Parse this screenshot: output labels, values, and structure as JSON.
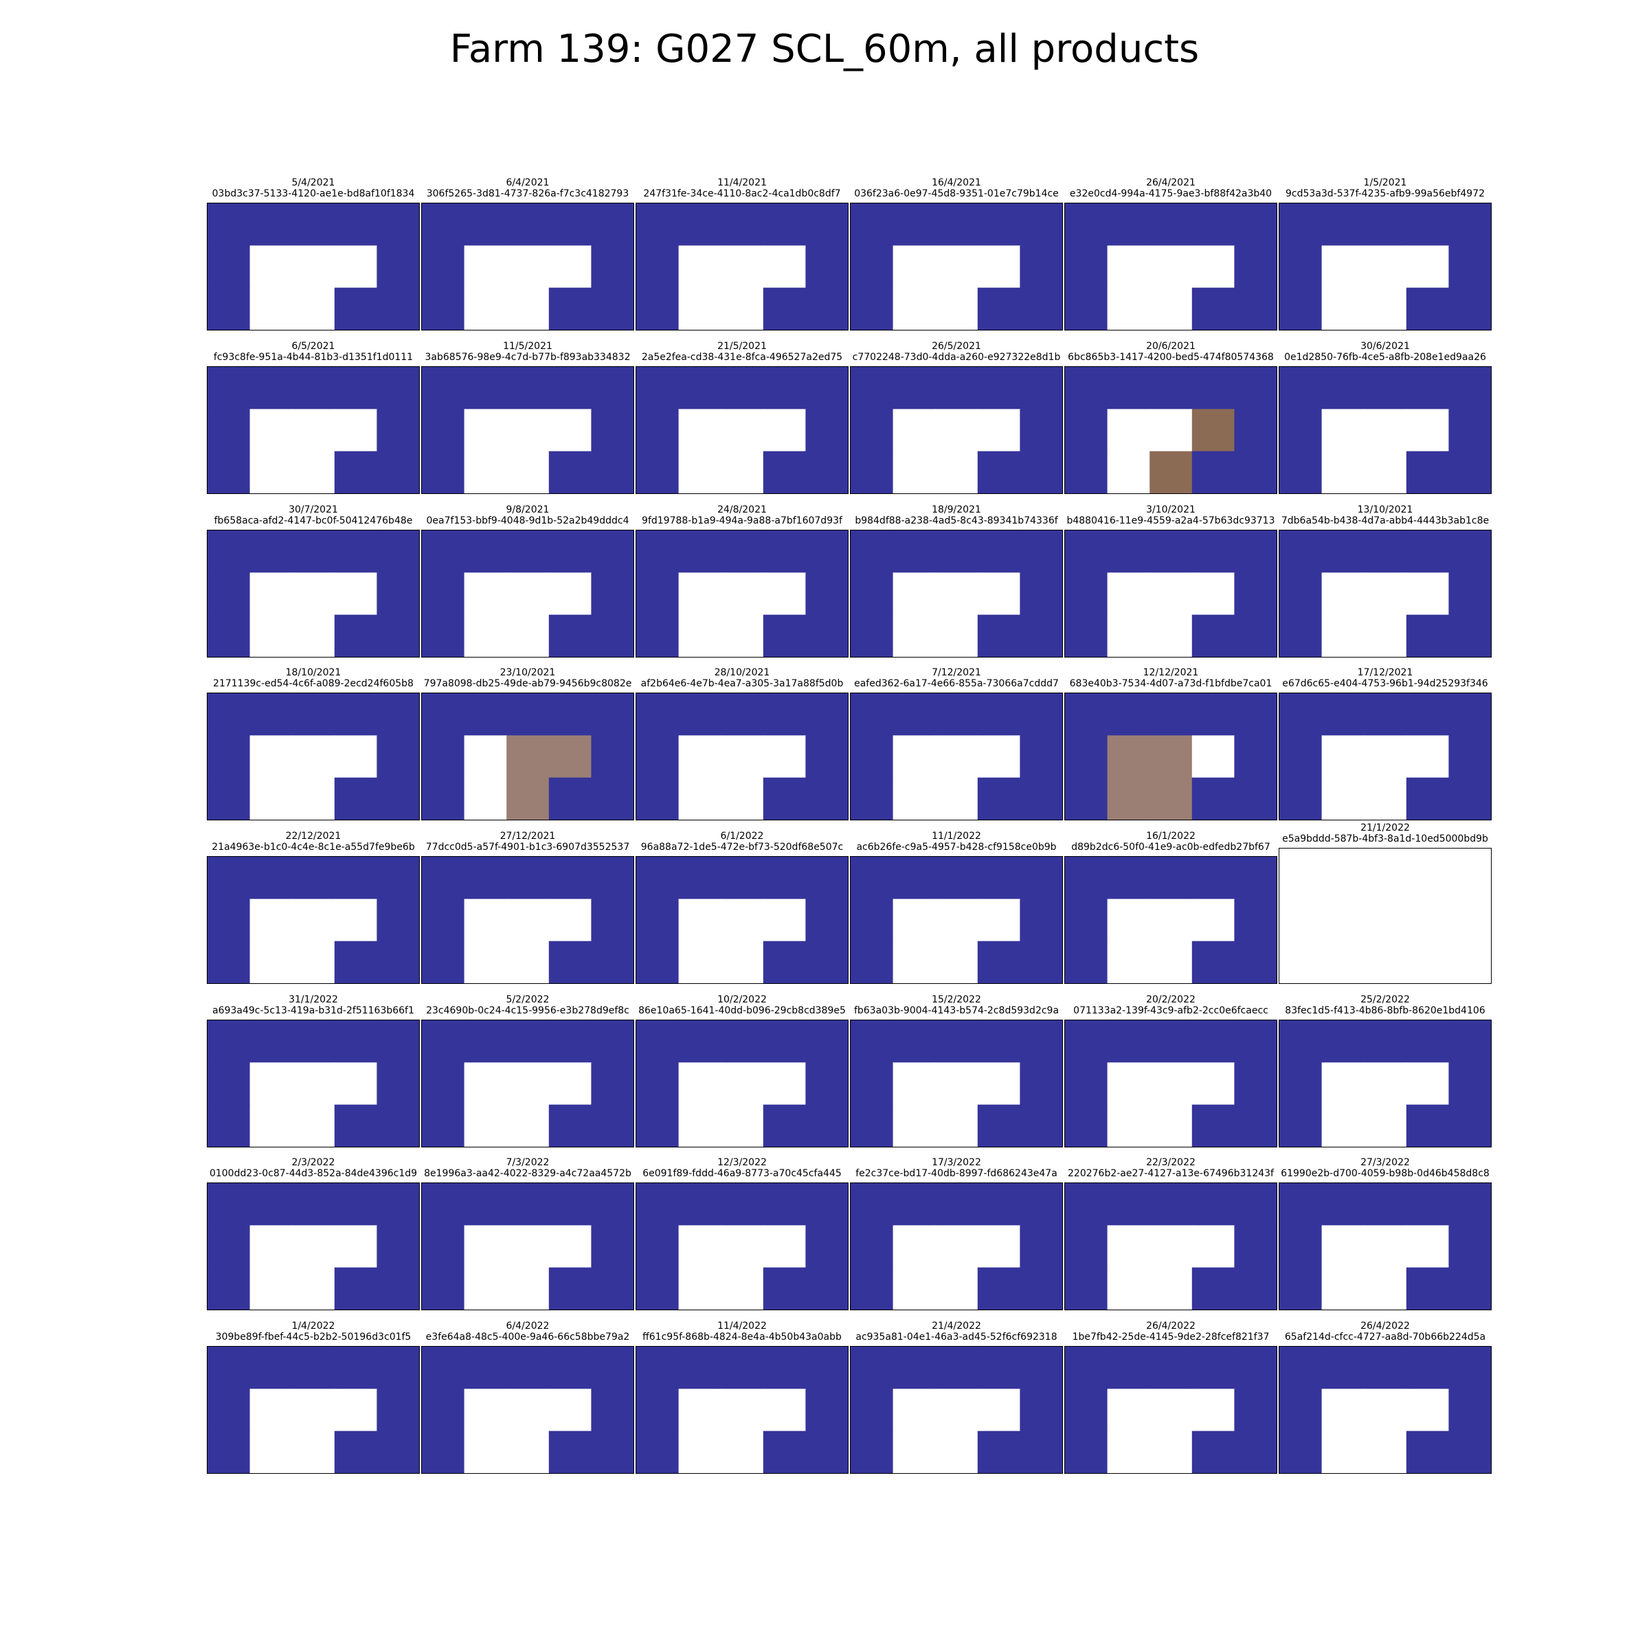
{
  "title": "Farm 139: G027 SCL_60m, all products",
  "colors": {
    "water": "#35349a",
    "nodata": "#ffffff",
    "dark_brown": "#8c6b55",
    "brown": "#9b7f74"
  },
  "chart_data": {
    "type": "heatmap",
    "title": "Farm 139: G027 SCL_60m, all products",
    "grid_rows": 3,
    "grid_cols": 5,
    "legend": false,
    "axes_ticks": false,
    "base_mask": [
      [
        1,
        1,
        1,
        1,
        1
      ],
      [
        1,
        0,
        0,
        0,
        1
      ],
      [
        1,
        0,
        0,
        1,
        1
      ]
    ],
    "panels": [
      {
        "date": "5/4/2021",
        "id": "03bd3c37-5133-4120-ae1e-bd8af10f1834"
      },
      {
        "date": "6/4/2021",
        "id": "306f5265-3d81-4737-826a-f7c3c4182793"
      },
      {
        "date": "11/4/2021",
        "id": "247f31fe-34ce-4110-8ac2-4ca1db0c8df7"
      },
      {
        "date": "16/4/2021",
        "id": "036f23a6-0e97-45d8-9351-01e7c79b14ce"
      },
      {
        "date": "26/4/2021",
        "id": "e32e0cd4-994a-4175-9ae3-bf88f42a3b40"
      },
      {
        "date": "1/5/2021",
        "id": "9cd53a3d-537f-4235-afb9-99a56ebf4972"
      },
      {
        "date": "6/5/2021",
        "id": "fc93c8fe-951a-4b44-81b3-d1351f1d0111"
      },
      {
        "date": "11/5/2021",
        "id": "3ab68576-98e9-4c7d-b77b-f893ab334832"
      },
      {
        "date": "21/5/2021",
        "id": "2a5e2fea-cd38-431e-8fca-496527a2ed75"
      },
      {
        "date": "26/5/2021",
        "id": "c7702248-73d0-4dda-a260-e927322e8d1b"
      },
      {
        "date": "20/6/2021",
        "id": "6bc865b3-1417-4200-bed5-474f80574368",
        "cells": [
          {
            "r": 1,
            "c": 3,
            "color": "dark_brown"
          },
          {
            "r": 2,
            "c": 2,
            "color": "dark_brown"
          }
        ]
      },
      {
        "date": "30/6/2021",
        "id": "0e1d2850-76fb-4ce5-a8fb-208e1ed9aa26"
      },
      {
        "date": "30/7/2021",
        "id": "fb658aca-afd2-4147-bc0f-50412476b48e"
      },
      {
        "date": "9/8/2021",
        "id": "0ea7f153-bbf9-4048-9d1b-52a2b49dddc4"
      },
      {
        "date": "24/8/2021",
        "id": "9fd19788-b1a9-494a-9a88-a7bf1607d93f"
      },
      {
        "date": "18/9/2021",
        "id": "b984df88-a238-4ad5-8c43-89341b74336f"
      },
      {
        "date": "3/10/2021",
        "id": "b4880416-11e9-4559-a2a4-57b63dc93713"
      },
      {
        "date": "13/10/2021",
        "id": "7db6a54b-b438-4d7a-abb4-4443b3ab1c8e"
      },
      {
        "date": "18/10/2021",
        "id": "2171139c-ed54-4c6f-a089-2ecd24f605b8"
      },
      {
        "date": "23/10/2021",
        "id": "797a8098-db25-49de-ab79-9456b9c8082e",
        "cells": [
          {
            "r": 1,
            "c": 2,
            "color": "brown"
          },
          {
            "r": 1,
            "c": 3,
            "color": "brown"
          },
          {
            "r": 2,
            "c": 2,
            "color": "brown"
          }
        ]
      },
      {
        "date": "28/10/2021",
        "id": "af2b64e6-4e7b-4ea7-a305-3a17a88f5d0b"
      },
      {
        "date": "7/12/2021",
        "id": "eafed362-6a17-4e66-855a-73066a7cddd7"
      },
      {
        "date": "12/12/2021",
        "id": "683e40b3-7534-4d07-a73d-f1bfdbe7ca01",
        "cells": [
          {
            "r": 1,
            "c": 1,
            "color": "brown"
          },
          {
            "r": 1,
            "c": 2,
            "color": "brown"
          },
          {
            "r": 2,
            "c": 1,
            "color": "brown"
          },
          {
            "r": 2,
            "c": 2,
            "color": "brown"
          }
        ]
      },
      {
        "date": "17/12/2021",
        "id": "e67d6c65-e404-4753-96b1-94d25293f346"
      },
      {
        "date": "22/12/2021",
        "id": "21a4963e-b1c0-4c4e-8c1e-a55d7fe9be6b"
      },
      {
        "date": "27/12/2021",
        "id": "77dcc0d5-a57f-4901-b1c3-6907d3552537"
      },
      {
        "date": "6/1/2022",
        "id": "96a88a72-1de5-472e-bf73-520df68e507c"
      },
      {
        "date": "11/1/2022",
        "id": "ac6b26fe-c9a5-4957-b428-cf9158ce0b9b"
      },
      {
        "date": "16/1/2022",
        "id": "d89b2dc6-50f0-41e9-ac0b-edfedb27bf67"
      },
      {
        "date": "21/1/2022",
        "id": "e5a9bddd-587b-4bf3-8a1d-10ed5000bd9b",
        "blank": true
      },
      {
        "date": "31/1/2022",
        "id": "a693a49c-5c13-419a-b31d-2f51163b66f1"
      },
      {
        "date": "5/2/2022",
        "id": "23c4690b-0c24-4c15-9956-e3b278d9ef8c"
      },
      {
        "date": "10/2/2022",
        "id": "86e10a65-1641-40dd-b096-29cb8cd389e5"
      },
      {
        "date": "15/2/2022",
        "id": "fb63a03b-9004-4143-b574-2c8d593d2c9a"
      },
      {
        "date": "20/2/2022",
        "id": "071133a2-139f-43c9-afb2-2cc0e6fcaecc"
      },
      {
        "date": "25/2/2022",
        "id": "83fec1d5-f413-4b86-8bfb-8620e1bd4106"
      },
      {
        "date": "2/3/2022",
        "id": "0100dd23-0c87-44d3-852a-84de4396c1d9"
      },
      {
        "date": "7/3/2022",
        "id": "8e1996a3-aa42-4022-8329-a4c72aa4572b"
      },
      {
        "date": "12/3/2022",
        "id": "6e091f89-fddd-46a9-8773-a70c45cfa445"
      },
      {
        "date": "17/3/2022",
        "id": "fe2c37ce-bd17-40db-8997-fd686243e47a"
      },
      {
        "date": "22/3/2022",
        "id": "220276b2-ae27-4127-a13e-67496b31243f"
      },
      {
        "date": "27/3/2022",
        "id": "61990e2b-d700-4059-b98b-0d46b458d8c8"
      },
      {
        "date": "1/4/2022",
        "id": "309be89f-fbef-44c5-b2b2-50196d3c01f5"
      },
      {
        "date": "6/4/2022",
        "id": "e3fe64a8-48c5-400e-9a46-66c58bbe79a2"
      },
      {
        "date": "11/4/2022",
        "id": "ff61c95f-868b-4824-8e4a-4b50b43a0abb"
      },
      {
        "date": "21/4/2022",
        "id": "ac935a81-04e1-46a3-ad45-52f6cf692318"
      },
      {
        "date": "26/4/2022",
        "id": "1be7fb42-25de-4145-9de2-28fcef821f37"
      },
      {
        "date": "26/4/2022",
        "id": "65af214d-cfcc-4727-aa8d-70b66b224d5a"
      }
    ]
  }
}
